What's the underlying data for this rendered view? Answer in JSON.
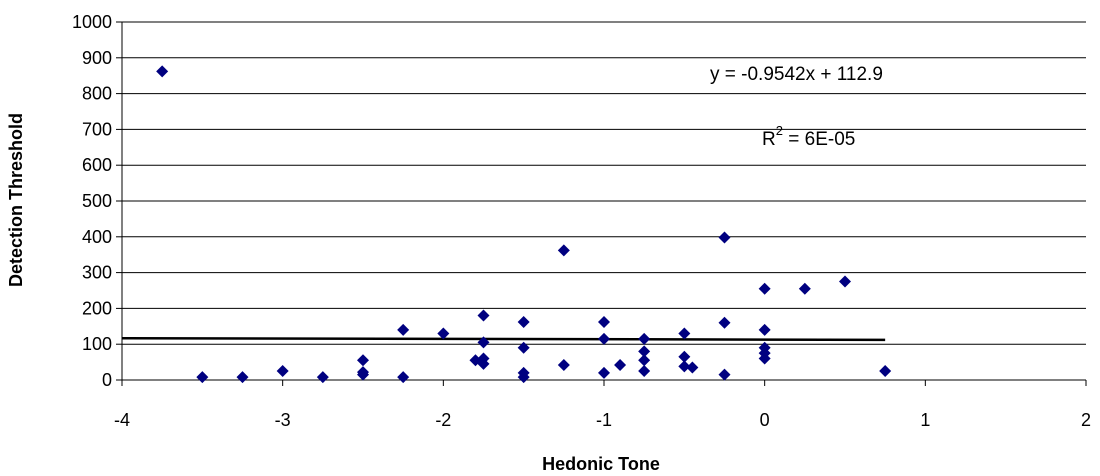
{
  "chart_data": {
    "type": "scatter",
    "xlabel": "Hedonic Tone",
    "ylabel": "Detection Threshold",
    "xlim": [
      -4,
      2
    ],
    "ylim": [
      0,
      1000
    ],
    "x_ticks": [
      -4,
      -3,
      -2,
      -1,
      0,
      1,
      2
    ],
    "y_ticks": [
      0,
      100,
      200,
      300,
      400,
      500,
      600,
      700,
      800,
      900,
      1000
    ],
    "grid": "horizontal",
    "marker": "diamond",
    "marker_color": "#000080",
    "line_color": "#000000",
    "trendline": {
      "slope": -0.9542,
      "intercept": 112.9,
      "equation_text": "y = -0.9542x + 112.9",
      "r2_prefix": "R",
      "r2_exp": "2",
      "r2_value": " = 6E-05"
    },
    "points": [
      [
        -3.75,
        862
      ],
      [
        -3.5,
        8
      ],
      [
        -3.25,
        8
      ],
      [
        -3.0,
        25
      ],
      [
        -2.75,
        8
      ],
      [
        -2.5,
        55
      ],
      [
        -2.5,
        22
      ],
      [
        -2.5,
        15
      ],
      [
        -2.25,
        140
      ],
      [
        -2.25,
        8
      ],
      [
        -2.0,
        130
      ],
      [
        -1.8,
        55
      ],
      [
        -1.75,
        180
      ],
      [
        -1.75,
        105
      ],
      [
        -1.75,
        60
      ],
      [
        -1.75,
        45
      ],
      [
        -1.5,
        162
      ],
      [
        -1.5,
        90
      ],
      [
        -1.5,
        20
      ],
      [
        -1.5,
        8
      ],
      [
        -1.25,
        362
      ],
      [
        -1.25,
        42
      ],
      [
        -1.0,
        162
      ],
      [
        -1.0,
        115
      ],
      [
        -1.0,
        20
      ],
      [
        -0.9,
        42
      ],
      [
        -0.75,
        115
      ],
      [
        -0.75,
        80
      ],
      [
        -0.75,
        55
      ],
      [
        -0.75,
        25
      ],
      [
        -0.5,
        130
      ],
      [
        -0.5,
        65
      ],
      [
        -0.5,
        38
      ],
      [
        -0.45,
        35
      ],
      [
        -0.25,
        398
      ],
      [
        -0.25,
        160
      ],
      [
        -0.25,
        15
      ],
      [
        0.0,
        255
      ],
      [
        0.0,
        140
      ],
      [
        0.0,
        90
      ],
      [
        0.0,
        75
      ],
      [
        0.0,
        60
      ],
      [
        0.25,
        255
      ],
      [
        0.5,
        275
      ],
      [
        0.75,
        25
      ]
    ]
  }
}
